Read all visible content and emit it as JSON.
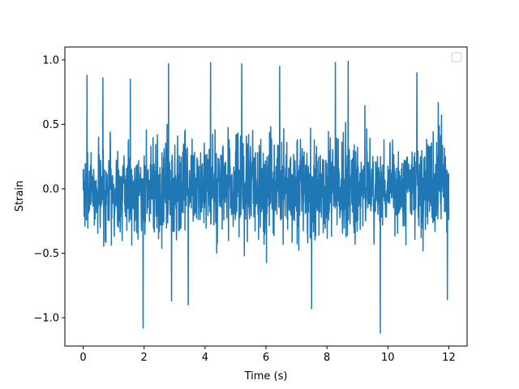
{
  "chart_data": {
    "type": "line",
    "title": "",
    "xlabel": "Time (s)",
    "ylabel": "Strain",
    "xlim": [
      -0.6,
      12.6
    ],
    "ylim": [
      -1.22,
      1.1
    ],
    "x_ticks": [
      0,
      2,
      4,
      6,
      8,
      10,
      12
    ],
    "x_tick_labels": [
      "0",
      "2",
      "4",
      "6",
      "8",
      "10",
      "12"
    ],
    "y_ticks": [
      -1.0,
      -0.5,
      0.0,
      0.5,
      1.0
    ],
    "y_tick_labels": [
      "−1.0",
      "−0.5",
      "0.0",
      "0.5",
      "1.0"
    ],
    "grid": false,
    "legend": {
      "placement": "upper right",
      "entries": []
    },
    "series": [
      {
        "color": "#1f77b4",
        "x_range": [
          0,
          12
        ],
        "description_values": {
          "typical_band": [
            -0.62,
            0.6
          ],
          "notable_peaks": [
            {
              "x": 0.13,
              "y": 0.88
            },
            {
              "x": 0.65,
              "y": 0.86
            },
            {
              "x": 1.55,
              "y": 0.85
            },
            {
              "x": 2.8,
              "y": 0.97
            },
            {
              "x": 4.18,
              "y": 0.98
            },
            {
              "x": 5.2,
              "y": 0.97
            },
            {
              "x": 6.45,
              "y": 0.95
            },
            {
              "x": 8.28,
              "y": 0.98
            },
            {
              "x": 8.7,
              "y": 0.99
            },
            {
              "x": 10.95,
              "y": 0.9
            },
            {
              "x": 11.65,
              "y": 0.67
            }
          ],
          "notable_troughs": [
            {
              "x": 1.97,
              "y": -1.08
            },
            {
              "x": 2.9,
              "y": -0.87
            },
            {
              "x": 3.45,
              "y": -0.9
            },
            {
              "x": 7.5,
              "y": -0.93
            },
            {
              "x": 9.75,
              "y": -1.12
            },
            {
              "x": 11.95,
              "y": -0.86
            }
          ]
        }
      }
    ]
  }
}
